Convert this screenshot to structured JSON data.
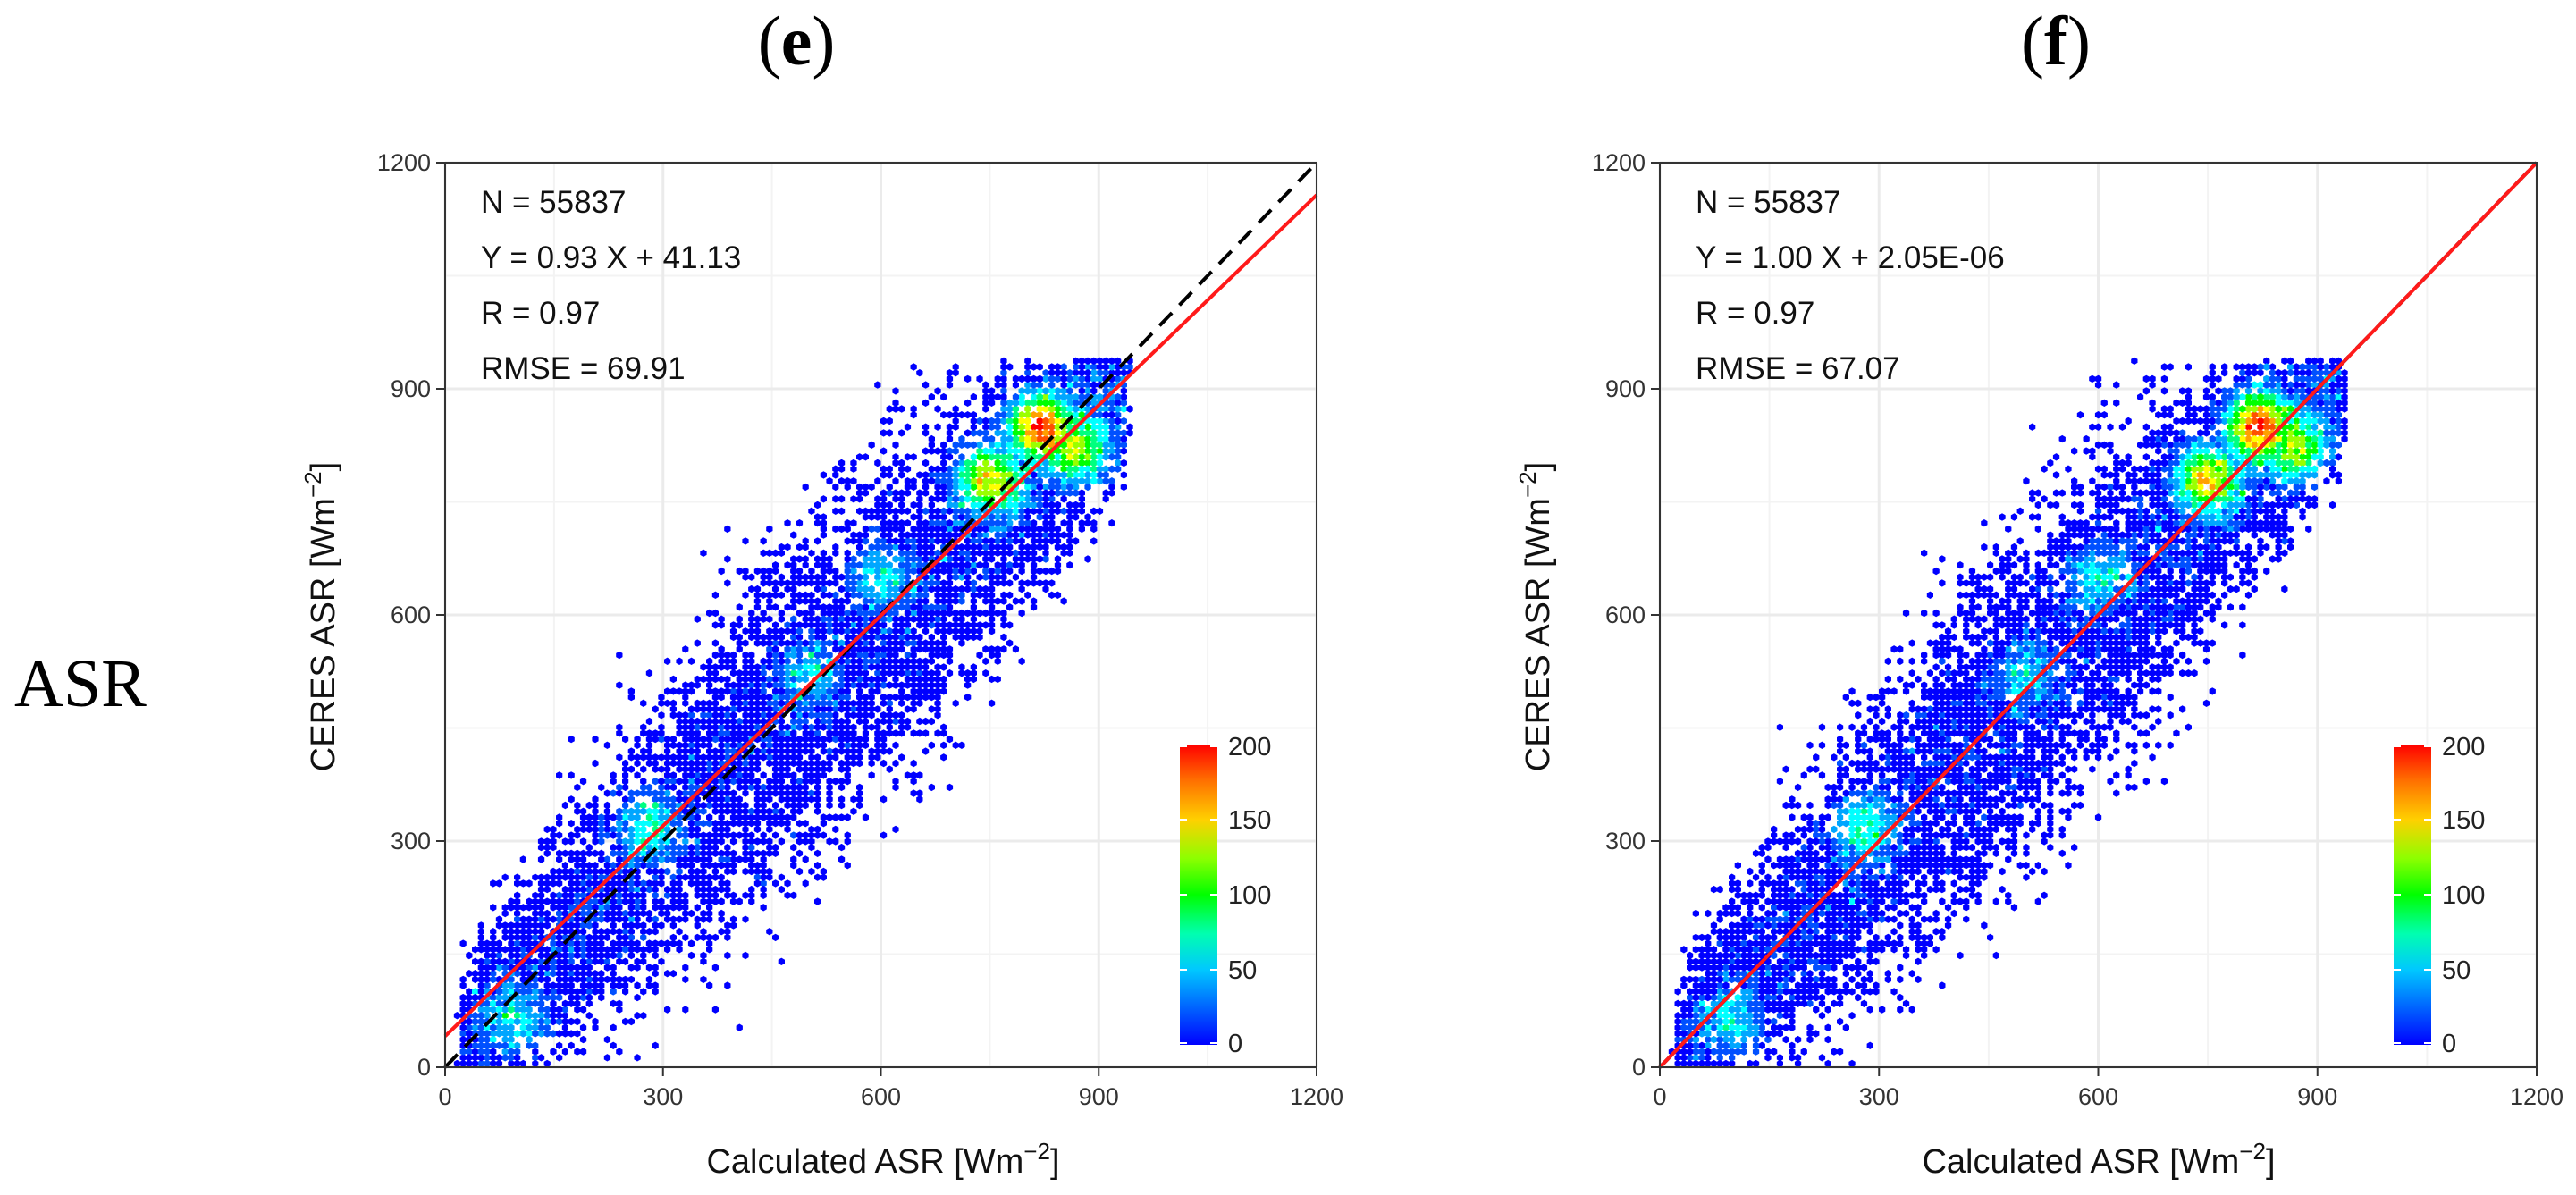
{
  "row_label": "ASR",
  "colors": {
    "fit_line": "#ff1a1a",
    "one_to_one": "#000000",
    "grid": "#ebebeb",
    "colormap": [
      "#0000ff",
      "#0050ff",
      "#00a6ff",
      "#00ffff",
      "#00ff7f",
      "#00ff00",
      "#9aff00",
      "#ffff00",
      "#ffa000",
      "#ff5000",
      "#ff0000"
    ]
  },
  "chart_data": [
    {
      "type": "scatter",
      "panel_label": "e",
      "title": "(e)",
      "xlabel": "Calculated ASR [Wm",
      "ylabel": "CERES ASR [Wm",
      "unit_exponent": "−2",
      "xlim": [
        0,
        1200
      ],
      "ylim": [
        0,
        1200
      ],
      "xticks": [
        0,
        300,
        600,
        900,
        1200
      ],
      "yticks": [
        0,
        300,
        600,
        900,
        1200
      ],
      "xtick_labels": [
        "0",
        "300",
        "600",
        "900",
        "1200"
      ],
      "ytick_labels": [
        "0",
        "300",
        "600",
        "900",
        "1200"
      ],
      "stats": {
        "n": "N =  55837",
        "eq": "Y =  0.93 X + 41.13",
        "r": "R =  0.97",
        "rmse": "RMSE =  69.91"
      },
      "fit": {
        "slope": 0.93,
        "intercept": 41.13
      },
      "points_range_x": [
        0,
        960
      ],
      "points_range_y": [
        0,
        935
      ],
      "colorbar": {
        "range": [
          0,
          200
        ],
        "ticks": [
          0,
          50,
          100,
          150,
          200
        ],
        "tick_labels": [
          "0",
          "50",
          "100",
          "150",
          "200"
        ]
      }
    },
    {
      "type": "scatter",
      "panel_label": "f",
      "title": "(f)",
      "xlabel": "Calculated ASR [Wm",
      "ylabel": "CERES ASR [Wm",
      "unit_exponent": "−2",
      "xlim": [
        0,
        1200
      ],
      "ylim": [
        0,
        1200
      ],
      "xticks": [
        0,
        300,
        600,
        900,
        1200
      ],
      "yticks": [
        0,
        300,
        600,
        900,
        1200
      ],
      "xtick_labels": [
        "0",
        "300",
        "600",
        "900",
        "1200"
      ],
      "ytick_labels": [
        "0",
        "300",
        "600",
        "900",
        "1200"
      ],
      "stats": {
        "n": "N =  55837",
        "eq": "Y =  1.00 X + 2.05E-06",
        "r": "R =  0.97",
        "rmse": "RMSE =  67.07"
      },
      "fit": {
        "slope": 1.0,
        "intercept": 2.05e-06
      },
      "points_range_x": [
        0,
        935
      ],
      "points_range_y": [
        0,
        935
      ],
      "colorbar": {
        "range": [
          0,
          200
        ],
        "ticks": [
          0,
          50,
          100,
          150,
          200
        ],
        "tick_labels": [
          "0",
          "50",
          "100",
          "150",
          "200"
        ]
      }
    }
  ]
}
